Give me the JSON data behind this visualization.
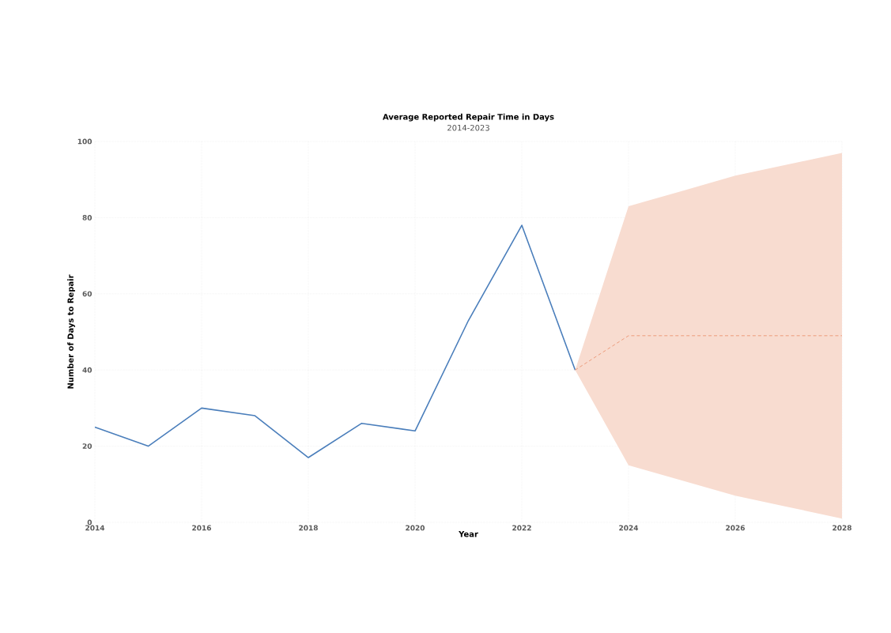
{
  "chart_data": {
    "type": "line",
    "title": "Average Reported Repair Time in Days",
    "subtitle": "2014-2023",
    "xlabel": "Year",
    "ylabel": "Number of Days to Repair",
    "xlim": [
      2014,
      2028
    ],
    "xticks": [
      2014,
      2016,
      2018,
      2020,
      2022,
      2024,
      2026,
      2028
    ],
    "ylim": [
      0,
      100
    ],
    "yticks": [
      0,
      20,
      40,
      60,
      80,
      100
    ],
    "grid": true,
    "marker": "none",
    "series": [
      {
        "color": "#4a7ebb",
        "line_style": "solid",
        "x": [
          2014,
          2015,
          2016,
          2017,
          2018,
          2019,
          2020,
          2021,
          2022,
          2023
        ],
        "values": [
          25,
          20,
          30,
          28,
          17,
          26,
          24,
          53,
          78,
          40
        ]
      },
      {
        "color": "#ec9b7a",
        "line_style": "dashed",
        "x": [
          2023,
          2024,
          2025,
          2026,
          2027,
          2028
        ],
        "values": [
          40,
          49,
          49,
          49,
          49,
          49
        ],
        "lower": [
          40,
          15,
          11,
          7,
          4,
          1
        ],
        "upper": [
          40,
          83,
          87,
          91,
          94,
          97
        ]
      }
    ]
  }
}
